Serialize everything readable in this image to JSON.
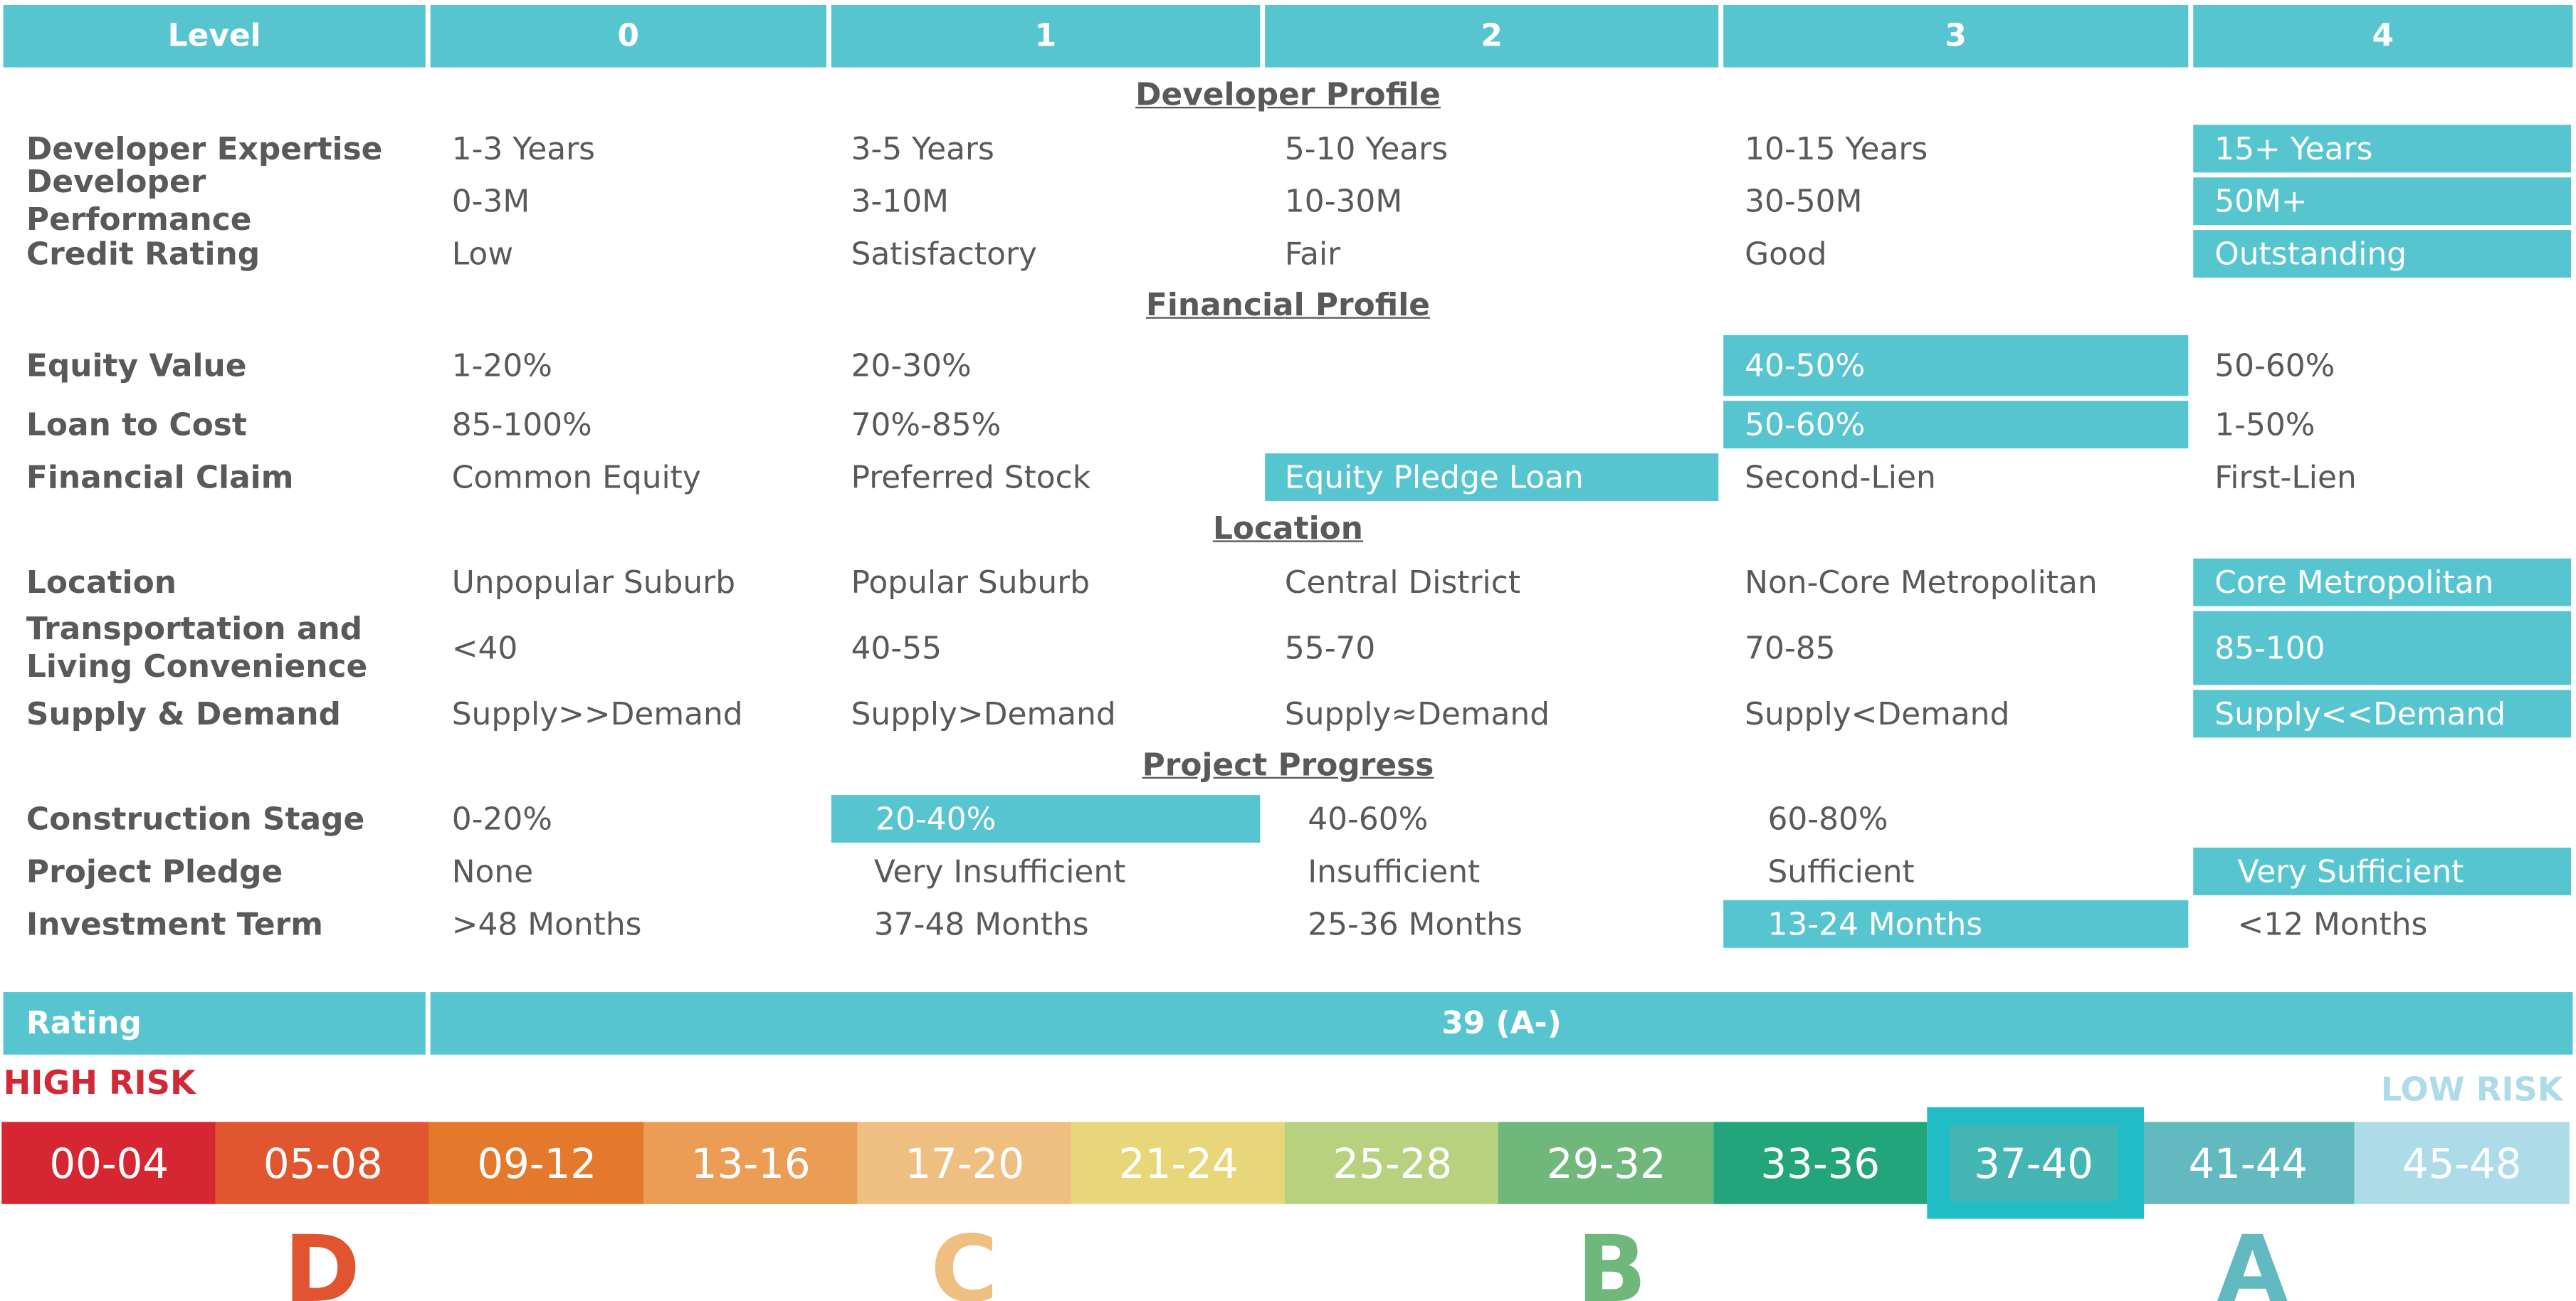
{
  "colors": {
    "accent": "#57c5d0",
    "text": "#595959",
    "high_risk": "#d12a36",
    "low_risk": "#aedbe8"
  },
  "header": {
    "label": "Level",
    "levels": [
      "0",
      "1",
      "2",
      "3",
      "4"
    ]
  },
  "sections": {
    "developer": {
      "title": "Developer Profile",
      "rows": [
        {
          "label": "Developer Expertise",
          "values": [
            "1-3 Years",
            "3-5 Years",
            "5-10 Years",
            "10-15 Years",
            "15+ Years"
          ],
          "selected_level": 4
        },
        {
          "label": "Developer Performance",
          "values": [
            "0-3M",
            "3-10M",
            "10-30M",
            "30-50M",
            "50M+"
          ],
          "selected_level": 4
        },
        {
          "label": "Credit Rating",
          "values": [
            "Low",
            "Satisfactory",
            "Fair",
            "Good",
            "Outstanding"
          ],
          "selected_level": 4
        }
      ]
    },
    "financial": {
      "title": "Financial Profile",
      "rows": [
        {
          "label": "Equity Value",
          "values": [
            "1-20%",
            "20-30%",
            "",
            "40-50%",
            "50-60%"
          ],
          "selected_level": 3
        },
        {
          "label": "Loan to Cost",
          "values": [
            "85-100%",
            "70%-85%",
            "",
            "50-60%",
            "1-50%"
          ],
          "selected_level": 3
        },
        {
          "label": "Financial Claim",
          "values": [
            "Common Equity",
            "Preferred Stock",
            "Equity Pledge Loan",
            "Second-Lien",
            "First-Lien"
          ],
          "selected_level": 2
        }
      ]
    },
    "location": {
      "title": "Location",
      "rows": [
        {
          "label": "Location",
          "values": [
            "Unpopular Suburb",
            "Popular Suburb",
            "Central District",
            "Non-Core Metropolitan",
            "Core Metropolitan"
          ],
          "selected_level": 4
        },
        {
          "label_line1": "Transportation and",
          "label_line2": "Living Convenience",
          "values": [
            "<40",
            "40-55",
            "55-70",
            "70-85",
            "85-100"
          ],
          "selected_level": 4
        },
        {
          "label": "Supply & Demand",
          "values": [
            "Supply>>Demand",
            "Supply>Demand",
            "Supply≈Demand",
            "Supply<Demand",
            "Supply<<Demand"
          ],
          "selected_level": 4
        }
      ]
    },
    "progress": {
      "title": "Project Progress",
      "rows": [
        {
          "label": "Construction Stage",
          "values": [
            "0-20%",
            "20-40%",
            "40-60%",
            "60-80%",
            ""
          ],
          "selected_level": 1
        },
        {
          "label": "Project Pledge",
          "values": [
            "None",
            "Very Insufficient",
            "Insufficient",
            "Sufficient",
            "Very Sufficient"
          ],
          "selected_level": 4
        },
        {
          "label": "Investment Term",
          "values": [
            ">48 Months",
            "37-48 Months",
            "25-36 Months",
            "13-24 Months",
            "<12 Months"
          ],
          "selected_level": 3
        }
      ]
    }
  },
  "rating": {
    "label": "Rating",
    "value": "39 (A-)"
  },
  "risk": {
    "high": "HIGH RISK",
    "low": "LOW RISK"
  },
  "scale": {
    "selected_index": 9,
    "segments": [
      {
        "label": "00-04",
        "color": "#d62631"
      },
      {
        "label": "05-08",
        "color": "#e1552f"
      },
      {
        "label": "09-12",
        "color": "#e4792c"
      },
      {
        "label": "13-16",
        "color": "#eb9d56"
      },
      {
        "label": "17-20",
        "color": "#efbf82"
      },
      {
        "label": "21-24",
        "color": "#e8d77a"
      },
      {
        "label": "25-28",
        "color": "#b7d17e"
      },
      {
        "label": "29-32",
        "color": "#6fb77a"
      },
      {
        "label": "33-36",
        "color": "#22a57b"
      },
      {
        "label": "37-40",
        "color": "#43b5b3"
      },
      {
        "label": "41-44",
        "color": "#62b9bf"
      },
      {
        "label": "45-48",
        "color": "#aedbe8"
      }
    ],
    "grades": [
      {
        "letter": "D",
        "color": "#e0552f"
      },
      {
        "letter": "C",
        "color": "#efbf82"
      },
      {
        "letter": "B",
        "color": "#6fb77a"
      },
      {
        "letter": "A",
        "color": "#62b9bf"
      }
    ]
  }
}
